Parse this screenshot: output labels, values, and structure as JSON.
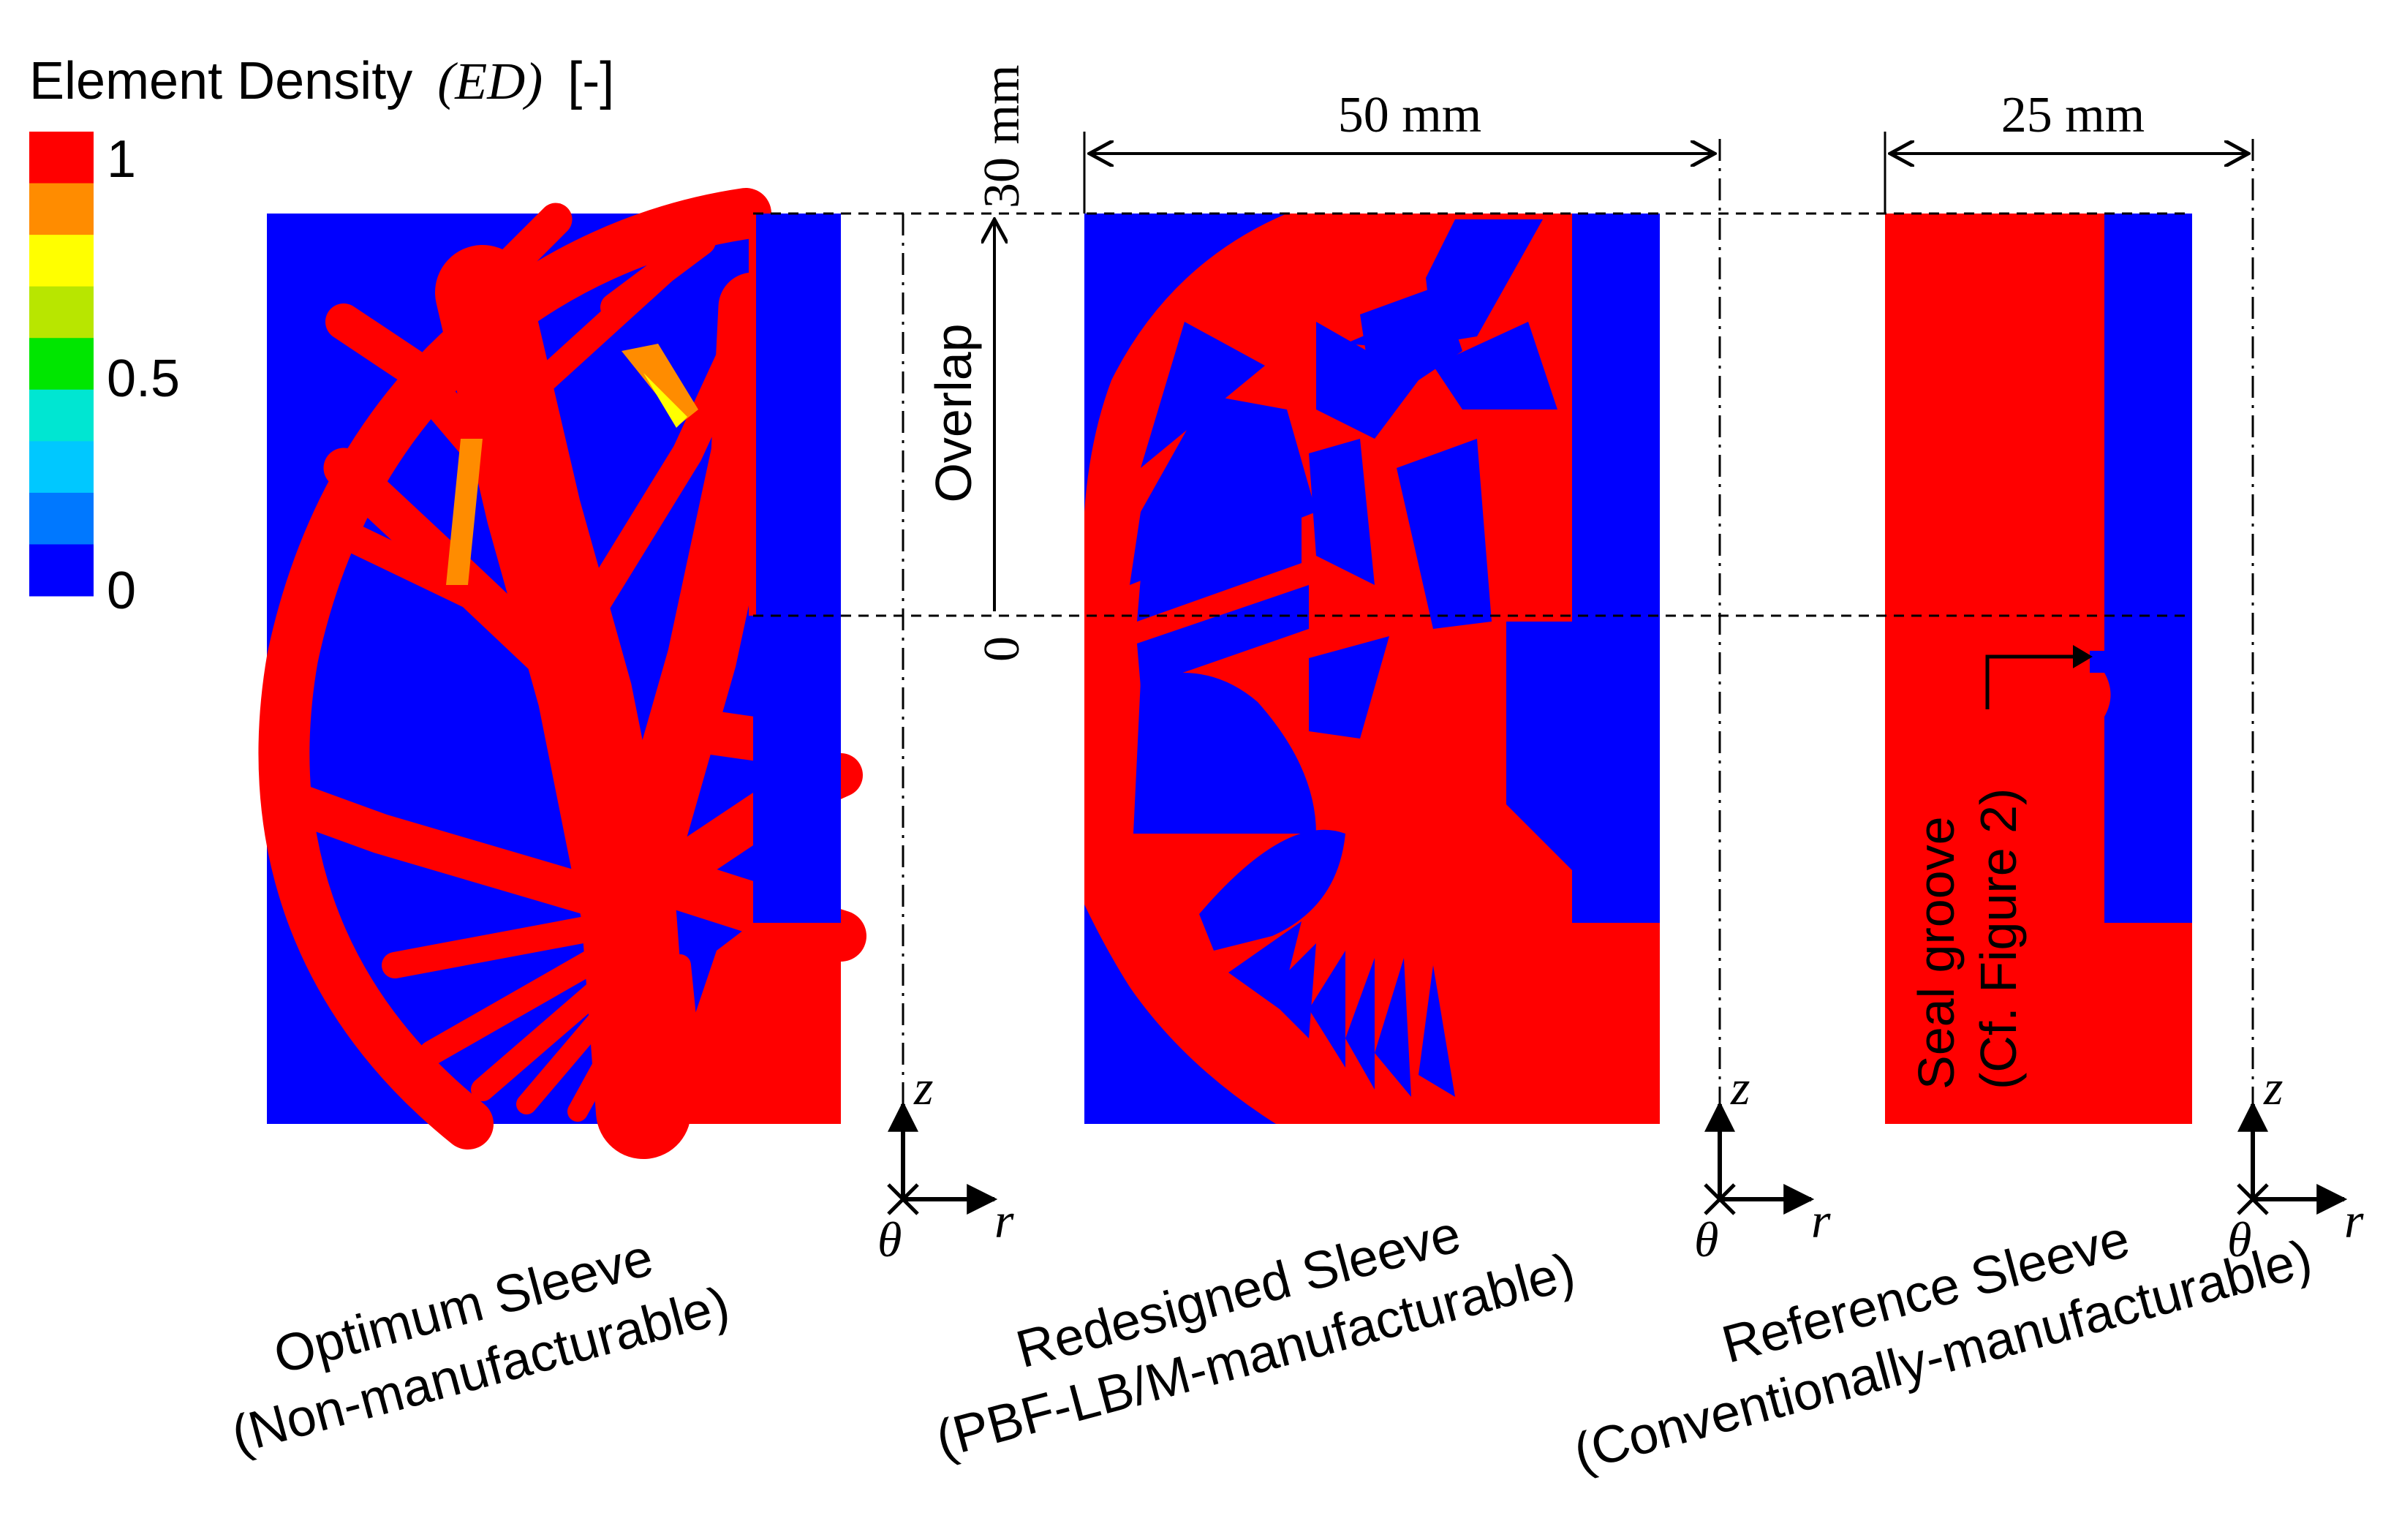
{
  "legend": {
    "title": "Element Density",
    "symbol": "(ED)",
    "unit": "[-]",
    "tick_top": "1",
    "tick_mid": "0.5",
    "tick_bottom": "0",
    "bands": [
      "#ff0000",
      "#ff8c00",
      "#ffff00",
      "#b8e600",
      "#00e600",
      "#00e6d2",
      "#00c8ff",
      "#0078ff",
      "#0000ff"
    ]
  },
  "dimensions": {
    "height_top": "30 mm",
    "height_bottom": "0",
    "overlap": "Overlap",
    "width_redesigned": "50 mm",
    "width_reference": "25 mm"
  },
  "annotation": {
    "seal_line1": "Seal groove",
    "seal_line2": "(Cf. Figure 2)"
  },
  "axes": {
    "z": "z",
    "r": "r",
    "theta": "θ"
  },
  "panels": [
    {
      "title": "Optimum Sleeve",
      "subtitle": "(Non-manufacturable)"
    },
    {
      "title": "Redesigned Sleeve",
      "subtitle": "(PBF-LB/M-manufacturable)"
    },
    {
      "title": "Reference Sleeve",
      "subtitle": "(Conventionally-manufacturable)"
    }
  ],
  "colors": {
    "material": "#ff0000",
    "void": "#0000ff",
    "intermediate": "#ff8c00",
    "line": "#000000"
  }
}
